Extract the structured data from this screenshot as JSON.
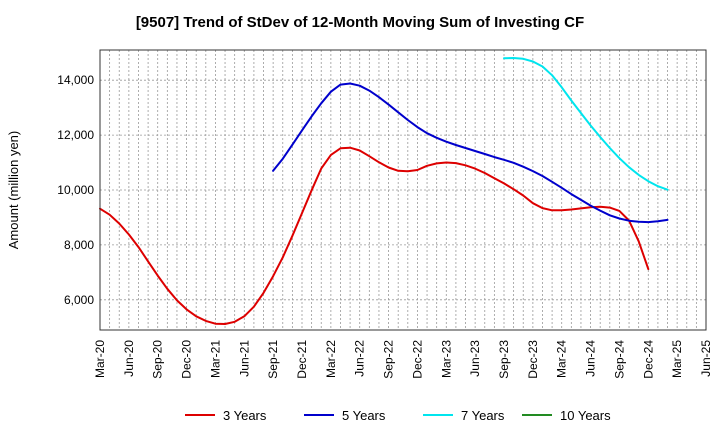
{
  "chart_data": {
    "type": "line",
    "title": "[9507]  Trend of StDev of 12-Month Moving Sum of Investing CF",
    "xlabel": "",
    "ylabel": "Amount (million yen)",
    "ylim": [
      4900,
      15100
    ],
    "yticks": [
      6000,
      8000,
      10000,
      12000,
      14000
    ],
    "ytick_labels": [
      "6,000",
      "8,000",
      "10,000",
      "12,000",
      "14,000"
    ],
    "x_tick_labels": [
      "Mar-20",
      "Jun-20",
      "Sep-20",
      "Dec-20",
      "Mar-21",
      "Jun-21",
      "Sep-21",
      "Dec-21",
      "Mar-22",
      "Jun-22",
      "Sep-22",
      "Dec-22",
      "Mar-23",
      "Jun-23",
      "Sep-23",
      "Dec-23",
      "Mar-24",
      "Jun-24",
      "Sep-24",
      "Dec-24",
      "Mar-25",
      "Jun-25"
    ],
    "grid": true,
    "legend_position": "bottom",
    "colors": {
      "3 Years": "#dd0000",
      "5 Years": "#0000cc",
      "7 Years": "#00e5ee",
      "10 Years": "#228b22"
    },
    "series": [
      {
        "name": "3 Years",
        "start": "Mar-20",
        "values": [
          9320,
          9100,
          8780,
          8380,
          7920,
          7400,
          6880,
          6400,
          5980,
          5650,
          5400,
          5230,
          5130,
          5120,
          5200,
          5400,
          5750,
          6250,
          6860,
          7550,
          8330,
          9160,
          9990,
          10780,
          11280,
          11520,
          11540,
          11440,
          11230,
          11010,
          10820,
          10700,
          10680,
          10730,
          10880,
          10970,
          11000,
          10980,
          10900,
          10780,
          10620,
          10430,
          10240,
          10030,
          9800,
          9520,
          9340,
          9260,
          9260,
          9290,
          9330,
          9370,
          9390,
          9360,
          9240,
          8890,
          8130,
          7120
        ]
      },
      {
        "name": "5 Years",
        "start": "Sep-21",
        "values": [
          10700,
          11140,
          11650,
          12170,
          12680,
          13160,
          13580,
          13840,
          13880,
          13800,
          13620,
          13380,
          13110,
          12830,
          12550,
          12290,
          12070,
          11900,
          11760,
          11640,
          11530,
          11420,
          11310,
          11200,
          11100,
          10990,
          10850,
          10690,
          10510,
          10300,
          10080,
          9850,
          9640,
          9430,
          9250,
          9080,
          8960,
          8880,
          8840,
          8830,
          8860,
          8910
        ]
      },
      {
        "name": "7 Years",
        "start": "Sep-23",
        "values": [
          14800,
          14810,
          14780,
          14680,
          14500,
          14180,
          13740,
          13260,
          12800,
          12350,
          11930,
          11530,
          11160,
          10830,
          10550,
          10320,
          10140,
          10010
        ]
      },
      {
        "name": "10 Years",
        "start": "Mar-20",
        "values": []
      }
    ]
  }
}
